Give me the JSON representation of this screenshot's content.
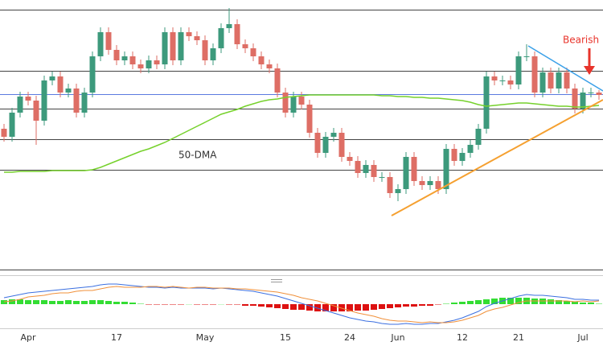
{
  "chart_data": {
    "type": "candlestick",
    "categories": [
      null,
      null,
      null,
      "Apr",
      null,
      null,
      null,
      null,
      null,
      null,
      null,
      null,
      null,
      null,
      "17",
      null,
      null,
      null,
      null,
      null,
      null,
      null,
      null,
      null,
      null,
      "May",
      null,
      null,
      null,
      null,
      null,
      null,
      null,
      null,
      null,
      "15",
      null,
      null,
      null,
      null,
      null,
      null,
      null,
      "24",
      null,
      null,
      null,
      null,
      null,
      "Jun",
      null,
      null,
      null,
      null,
      null,
      null,
      null,
      "12",
      null,
      null,
      null,
      null,
      null,
      null,
      "21",
      null,
      null,
      null,
      null,
      null,
      null,
      null,
      "Jul",
      null,
      null
    ],
    "open": [
      180,
      170,
      200,
      220,
      215,
      190,
      240,
      245,
      225,
      230,
      200,
      225,
      270,
      300,
      278,
      265,
      270,
      260,
      255,
      265,
      260,
      300,
      265,
      300,
      295,
      290,
      265,
      280,
      305,
      310,
      285,
      280,
      270,
      260,
      255,
      225,
      200,
      220,
      210,
      175,
      150,
      170,
      175,
      145,
      140,
      125,
      135,
      120,
      120,
      100,
      105,
      145,
      115,
      110,
      115,
      105,
      155,
      140,
      150,
      160,
      180,
      245,
      240,
      240,
      235,
      270,
      270,
      225,
      250,
      230,
      250,
      230,
      205,
      225,
      225
    ],
    "high": [
      186,
      206,
      226,
      226,
      221,
      246,
      251,
      251,
      236,
      236,
      231,
      276,
      306,
      306,
      284,
      276,
      276,
      266,
      271,
      271,
      306,
      306,
      306,
      306,
      301,
      296,
      286,
      311,
      330,
      316,
      291,
      286,
      276,
      266,
      261,
      231,
      226,
      226,
      216,
      181,
      176,
      181,
      181,
      151,
      146,
      141,
      141,
      126,
      126,
      111,
      151,
      151,
      121,
      121,
      121,
      161,
      161,
      156,
      166,
      186,
      251,
      251,
      246,
      246,
      276,
      285,
      276,
      256,
      256,
      256,
      256,
      236,
      231,
      231,
      228
    ],
    "low": [
      164,
      164,
      194,
      209,
      160,
      184,
      234,
      219,
      219,
      194,
      194,
      219,
      264,
      272,
      259,
      259,
      254,
      249,
      249,
      254,
      254,
      259,
      259,
      289,
      284,
      259,
      259,
      274,
      299,
      279,
      274,
      264,
      254,
      249,
      219,
      194,
      194,
      204,
      169,
      144,
      144,
      164,
      139,
      134,
      119,
      119,
      114,
      114,
      94,
      90,
      99,
      109,
      104,
      104,
      99,
      99,
      134,
      134,
      144,
      154,
      174,
      234,
      234,
      229,
      229,
      264,
      219,
      219,
      224,
      224,
      224,
      199,
      199,
      219,
      216
    ],
    "close": [
      170,
      200,
      220,
      215,
      190,
      240,
      245,
      225,
      230,
      200,
      225,
      270,
      300,
      278,
      265,
      270,
      260,
      255,
      265,
      260,
      300,
      265,
      300,
      295,
      290,
      265,
      280,
      305,
      310,
      285,
      280,
      270,
      260,
      255,
      225,
      200,
      220,
      210,
      175,
      150,
      170,
      175,
      145,
      140,
      125,
      135,
      120,
      120,
      100,
      105,
      145,
      115,
      110,
      115,
      105,
      155,
      140,
      150,
      160,
      180,
      245,
      240,
      240,
      235,
      270,
      270,
      225,
      250,
      230,
      250,
      230,
      205,
      225,
      225,
      222
    ],
    "up_color": "#3d9a7c",
    "down_color": "#de6e65",
    "ylim": [
      0,
      340
    ],
    "ma": {
      "name": "50-DMA",
      "color": "#76d12c",
      "values": [
        126,
        126,
        127,
        127,
        127,
        127,
        128,
        128,
        128,
        128,
        128,
        129,
        132,
        136,
        140,
        144,
        148,
        152,
        155,
        159,
        163,
        168,
        173,
        178,
        183,
        188,
        193,
        198,
        201,
        204,
        208,
        211,
        214,
        216,
        217,
        219,
        220,
        221,
        222,
        222,
        222,
        222,
        222,
        222,
        222,
        222,
        222,
        221,
        221,
        220,
        220,
        219,
        219,
        218,
        218,
        217,
        216,
        215,
        213,
        210,
        208,
        209,
        210,
        211,
        212,
        212,
        211,
        210,
        209,
        208,
        208,
        207,
        207,
        208,
        209
      ]
    },
    "annotation": "Bearish D",
    "annotation_color": "#e8342b",
    "macd": {
      "ylim": [
        -30,
        30
      ],
      "up_color": "#33dd33",
      "down_color": "#dd1111",
      "histogram": [
        5,
        6,
        6,
        5,
        5,
        5,
        4,
        4,
        5,
        4,
        4,
        5,
        5,
        4,
        3,
        3,
        2,
        1,
        -1,
        -1,
        -1,
        -1,
        -1,
        0,
        -1,
        -1,
        -1,
        0,
        -1,
        -1,
        -2,
        -2,
        -3,
        -4,
        -5,
        -6,
        -7,
        -7,
        -8,
        -9,
        -9,
        -9,
        -9,
        -9,
        -8,
        -8,
        -7,
        -6,
        -5,
        -4,
        -3,
        -3,
        -2,
        -2,
        -1,
        1,
        2,
        3,
        4,
        5,
        6,
        7,
        8,
        8,
        8,
        8,
        7,
        7,
        6,
        5,
        4,
        3,
        2,
        2,
        1
      ],
      "macd_line": {
        "color": "#3b6fe0",
        "values": [
          8,
          10,
          12,
          14,
          15,
          16,
          17,
          18,
          19,
          20,
          21,
          22,
          24,
          25,
          25,
          24,
          23,
          22,
          21,
          21,
          20,
          21,
          20,
          20,
          20,
          20,
          19,
          20,
          19,
          18,
          17,
          16,
          14,
          12,
          10,
          7,
          4,
          1,
          -2,
          -5,
          -8,
          -11,
          -14,
          -17,
          -19,
          -21,
          -22,
          -24,
          -25,
          -25,
          -24,
          -25,
          -25,
          -24,
          -24,
          -22,
          -20,
          -17,
          -13,
          -9,
          -3,
          1,
          4,
          7,
          10,
          12,
          11,
          11,
          10,
          9,
          8,
          6,
          6,
          5,
          5
        ]
      },
      "signal_line": {
        "color": "#f0903a",
        "values": [
          3,
          4,
          6,
          9,
          10,
          11,
          13,
          14,
          14,
          16,
          17,
          17,
          19,
          21,
          22,
          21,
          21,
          21,
          22,
          22,
          21,
          22,
          21,
          20,
          21,
          21,
          20,
          20,
          20,
          19,
          19,
          18,
          17,
          16,
          15,
          13,
          11,
          8,
          6,
          4,
          1,
          -2,
          -5,
          -8,
          -11,
          -13,
          -15,
          -18,
          -20,
          -21,
          -21,
          -22,
          -23,
          -22,
          -23,
          -23,
          -22,
          -20,
          -17,
          -14,
          -9,
          -6,
          -4,
          -1,
          2,
          4,
          4,
          4,
          4,
          4,
          4,
          3,
          4,
          3,
          4
        ]
      }
    }
  }
}
